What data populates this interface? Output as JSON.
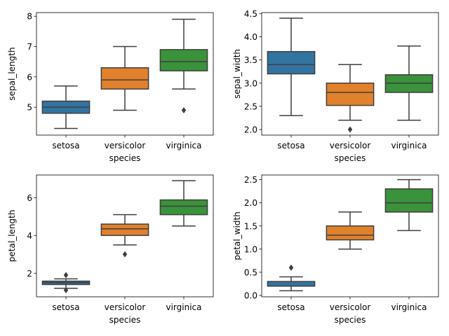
{
  "colors": {
    "setosa": "#3274a1",
    "versicolor": "#e1812c",
    "virginica": "#3a923a",
    "line": "#3f3f3f",
    "axis": "#000000"
  },
  "chart_data": [
    {
      "type": "box",
      "title": "",
      "xlabel": "species",
      "ylabel": "sepal_length",
      "categories": [
        "setosa",
        "versicolor",
        "virginica"
      ],
      "ylim": [
        4.08,
        8.12
      ],
      "yticks": [
        5,
        6,
        7,
        8
      ],
      "ytick_labels": [
        "5",
        "6",
        "7",
        "8"
      ],
      "boxes": [
        {
          "min": 4.3,
          "q1": 4.8,
          "median": 5.0,
          "q3": 5.2,
          "max": 5.7,
          "outliers": []
        },
        {
          "min": 4.9,
          "q1": 5.6,
          "median": 5.9,
          "q3": 6.3,
          "max": 7.0,
          "outliers": []
        },
        {
          "min": 5.6,
          "q1": 6.2,
          "median": 6.5,
          "q3": 6.9,
          "max": 7.9,
          "outliers": [
            4.9
          ]
        }
      ]
    },
    {
      "type": "box",
      "title": "",
      "xlabel": "species",
      "ylabel": "sepal_width",
      "categories": [
        "setosa",
        "versicolor",
        "virginica"
      ],
      "ylim": [
        1.88,
        4.52
      ],
      "yticks": [
        2.0,
        2.5,
        3.0,
        3.5,
        4.0,
        4.5
      ],
      "ytick_labels": [
        "2.0",
        "2.5",
        "3.0",
        "3.5",
        "4.0",
        "4.5"
      ],
      "boxes": [
        {
          "min": 2.3,
          "q1": 3.2,
          "median": 3.4,
          "q3": 3.68,
          "max": 4.4,
          "outliers": []
        },
        {
          "min": 2.2,
          "q1": 2.52,
          "median": 2.8,
          "q3": 3.0,
          "max": 3.4,
          "outliers": [
            2.0
          ]
        },
        {
          "min": 2.2,
          "q1": 2.8,
          "median": 3.0,
          "q3": 3.18,
          "max": 3.8,
          "outliers": []
        }
      ]
    },
    {
      "type": "box",
      "title": "",
      "xlabel": "species",
      "ylabel": "petal_length",
      "categories": [
        "setosa",
        "versicolor",
        "virginica"
      ],
      "ylim": [
        0.75,
        7.2
      ],
      "yticks": [
        2,
        4,
        6
      ],
      "ytick_labels": [
        "2",
        "4",
        "6"
      ],
      "boxes": [
        {
          "min": 1.2,
          "q1": 1.4,
          "median": 1.5,
          "q3": 1.58,
          "max": 1.7,
          "outliers": [
            1.1,
            1.9
          ]
        },
        {
          "min": 3.5,
          "q1": 4.0,
          "median": 4.35,
          "q3": 4.6,
          "max": 5.1,
          "outliers": [
            3.0
          ]
        },
        {
          "min": 4.5,
          "q1": 5.1,
          "median": 5.55,
          "q3": 5.88,
          "max": 6.9,
          "outliers": []
        }
      ]
    },
    {
      "type": "box",
      "title": "",
      "xlabel": "species",
      "ylabel": "petal_width",
      "categories": [
        "setosa",
        "versicolor",
        "virginica"
      ],
      "ylim": [
        -0.03,
        2.6
      ],
      "yticks": [
        0.0,
        0.5,
        1.0,
        1.5,
        2.0,
        2.5
      ],
      "ytick_labels": [
        "0.0",
        "0.5",
        "1.0",
        "1.5",
        "2.0",
        "2.5"
      ],
      "boxes": [
        {
          "min": 0.1,
          "q1": 0.2,
          "median": 0.2,
          "q3": 0.3,
          "max": 0.4,
          "outliers": [
            0.6
          ]
        },
        {
          "min": 1.0,
          "q1": 1.2,
          "median": 1.3,
          "q3": 1.5,
          "max": 1.8,
          "outliers": []
        },
        {
          "min": 1.4,
          "q1": 1.8,
          "median": 2.0,
          "q3": 2.3,
          "max": 2.5,
          "outliers": []
        }
      ]
    }
  ]
}
